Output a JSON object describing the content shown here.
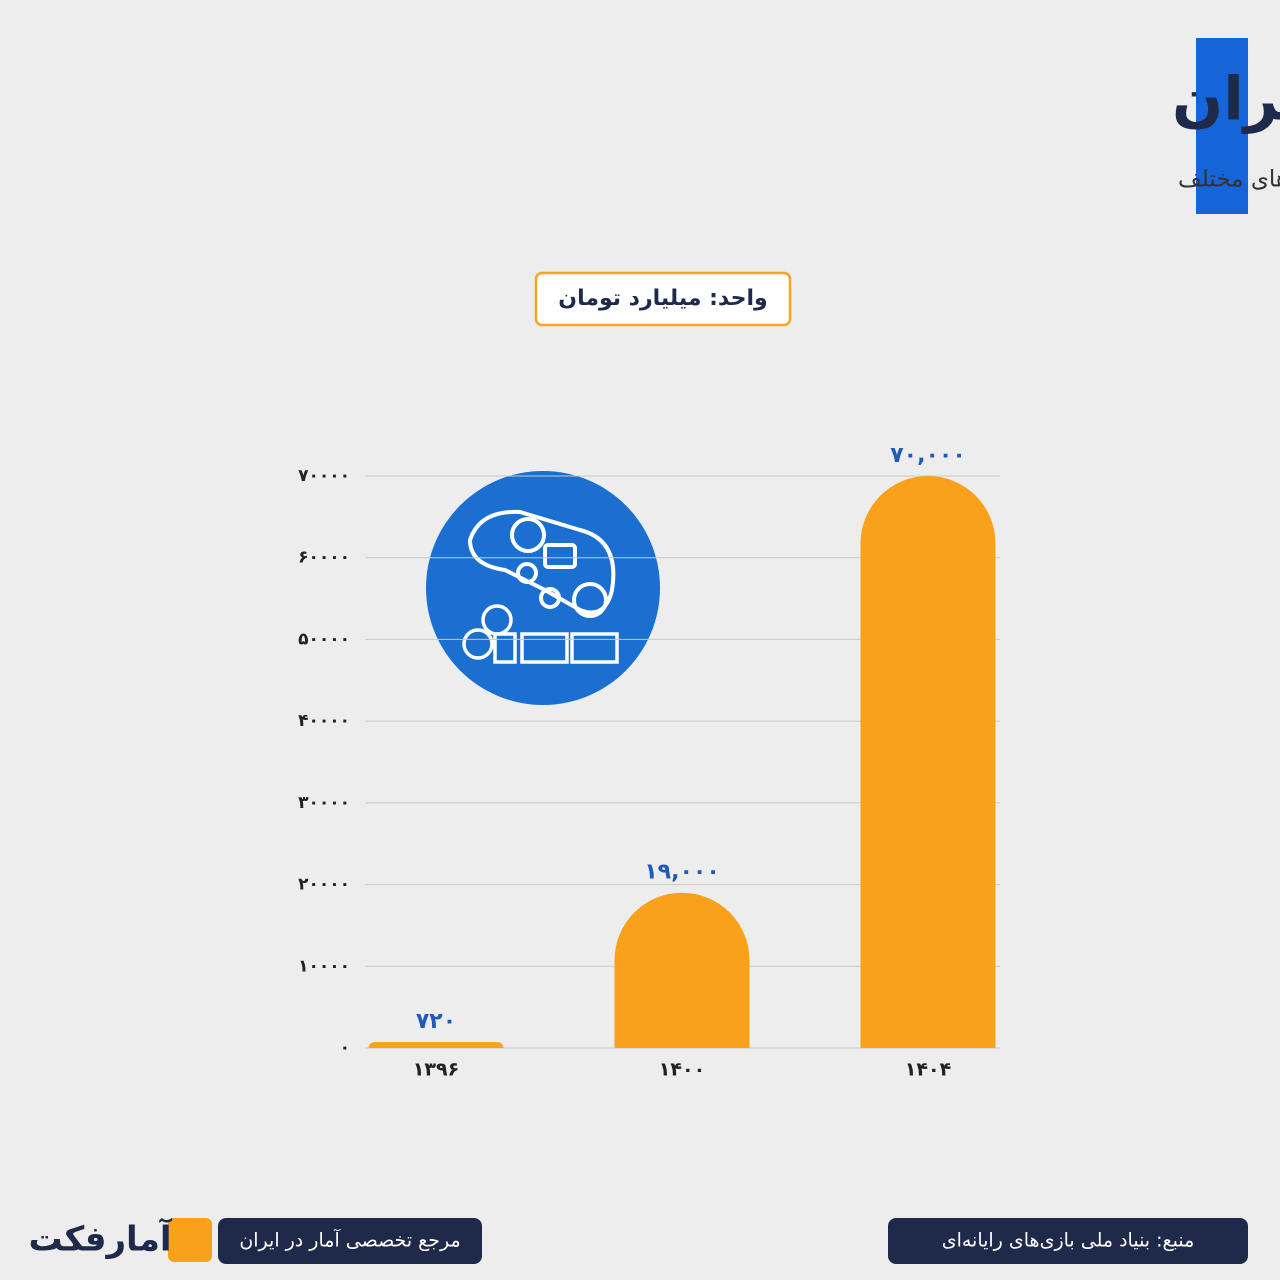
{
  "chart_data": {
    "type": "bar",
    "title": "گردش مالی صنعت بازی در ایران",
    "subtitle": "میزان گردش مالی صنعت بازی‌های رایانه ای در ایران در سال‌های مختلف",
    "unit": "واحد: میلیارد تومان",
    "categories": [
      "۱۳۹۶",
      "۱۴۰۰",
      "۱۴۰۴"
    ],
    "values": [
      720,
      19000,
      70000
    ],
    "value_labels": [
      "۷۲۰",
      "۱۹,۰۰۰",
      "۷۰,۰۰۰"
    ],
    "color": "#f9a11b",
    "ylim": [
      0,
      70000
    ],
    "yticks": [
      {
        "value": 0,
        "label": "۰"
      },
      {
        "value": 10000,
        "label": "۱۰۰۰۰"
      },
      {
        "value": 20000,
        "label": "۲۰۰۰۰"
      },
      {
        "value": 30000,
        "label": "۳۰۰۰۰"
      },
      {
        "value": 40000,
        "label": "۴۰۰۰۰"
      },
      {
        "value": 50000,
        "label": "۵۰۰۰۰"
      },
      {
        "value": 60000,
        "label": "۶۰۰۰۰"
      },
      {
        "value": 70000,
        "label": "۷۰۰۰۰"
      }
    ],
    "grid": true,
    "source": "منبع: بنیاد ملی بازی‌های رایانه‌ای",
    "tagline": "مرجع تخصصی آمار در ایران",
    "brand": "آمارفکت"
  }
}
